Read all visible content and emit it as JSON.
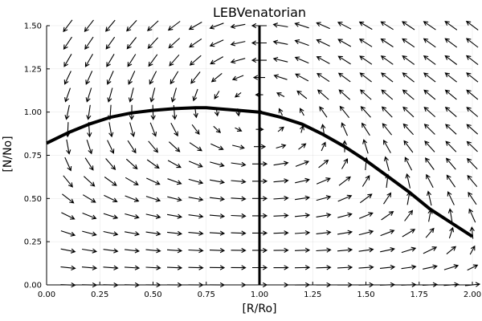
{
  "chart_data": {
    "type": "vector-field",
    "title": "LEBVenatorian",
    "xlabel": "[R/Ro]",
    "ylabel": "[N/No]",
    "xlim": [
      0,
      2
    ],
    "ylim": [
      0,
      1.5
    ],
    "xticks": [
      "0.00",
      "0.25",
      "0.50",
      "0.75",
      "1.00",
      "1.25",
      "1.50",
      "1.75",
      "2.00"
    ],
    "yticks": [
      "0.00",
      "0.25",
      "0.50",
      "0.75",
      "1.00",
      "1.25",
      "1.50"
    ],
    "grid": true,
    "arrow_field": {
      "x_start": 0.1,
      "x_end": 2.0,
      "x_step": 0.1,
      "y_start": 0.0,
      "y_end": 1.5,
      "y_step": 0.1
    },
    "nullclines": [
      {
        "name": "",
        "x": [
          0.0,
          0.1,
          0.2,
          0.3,
          0.4,
          0.5,
          0.6,
          0.7,
          0.75,
          0.8,
          0.9,
          1.0,
          1.1,
          1.2,
          1.3,
          1.4,
          1.5,
          1.6,
          1.7,
          1.8,
          1.9,
          2.0
        ],
        "y": [
          0.82,
          0.88,
          0.93,
          0.97,
          0.995,
          1.01,
          1.02,
          1.025,
          1.025,
          1.02,
          1.01,
          1.0,
          0.97,
          0.93,
          0.87,
          0.8,
          0.72,
          0.63,
          0.54,
          0.44,
          0.36,
          0.28
        ]
      },
      {
        "name": "",
        "x": [
          1.0,
          1.0
        ],
        "y": [
          0.0,
          1.5
        ]
      }
    ]
  }
}
